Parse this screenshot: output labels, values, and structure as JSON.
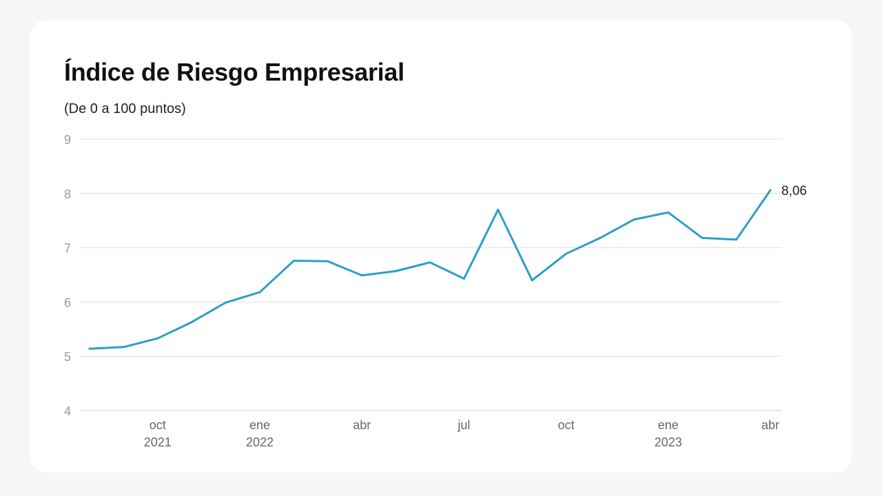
{
  "card": {
    "title": "Índice de Riesgo Empresarial",
    "subtitle": "(De 0 a 100 puntos)"
  },
  "colors": {
    "line": "#2b9fc7",
    "grid": "#dddddd",
    "y_tick_label": "#9a9a9a",
    "x_tick_label": "#666666",
    "end_label": "#222222"
  },
  "chart_data": {
    "type": "line",
    "title": "Índice de Riesgo Empresarial",
    "subtitle": "(De 0 a 100 puntos)",
    "xlabel": "",
    "ylabel": "",
    "ylim": [
      4,
      9
    ],
    "y_ticks": [
      "4",
      "5",
      "6",
      "7",
      "8",
      "9"
    ],
    "grid": true,
    "x": [
      "2021-08",
      "2021-09",
      "2021-10",
      "2021-11",
      "2021-12",
      "2022-01",
      "2022-02",
      "2022-03",
      "2022-04",
      "2022-05",
      "2022-06",
      "2022-07",
      "2022-08",
      "2022-09",
      "2022-10",
      "2022-11",
      "2022-12",
      "2023-01",
      "2023-02",
      "2023-03",
      "2023-04"
    ],
    "x_ticks": [
      {
        "x": "2021-10",
        "label": "oct",
        "year": "2021"
      },
      {
        "x": "2022-01",
        "label": "ene",
        "year": "2022"
      },
      {
        "x": "2022-04",
        "label": "abr",
        "year": ""
      },
      {
        "x": "2022-07",
        "label": "jul",
        "year": ""
      },
      {
        "x": "2022-10",
        "label": "oct",
        "year": ""
      },
      {
        "x": "2023-01",
        "label": "ene",
        "year": "2023"
      },
      {
        "x": "2023-04",
        "label": "abr",
        "year": ""
      }
    ],
    "series": [
      {
        "values": [
          5.14,
          5.17,
          5.33,
          5.63,
          5.99,
          6.18,
          6.76,
          6.75,
          6.49,
          6.57,
          6.73,
          6.43,
          7.7,
          6.4,
          6.89,
          7.18,
          7.52,
          7.65,
          7.18,
          7.15,
          8.06
        ],
        "end_label": "8,06"
      }
    ]
  }
}
